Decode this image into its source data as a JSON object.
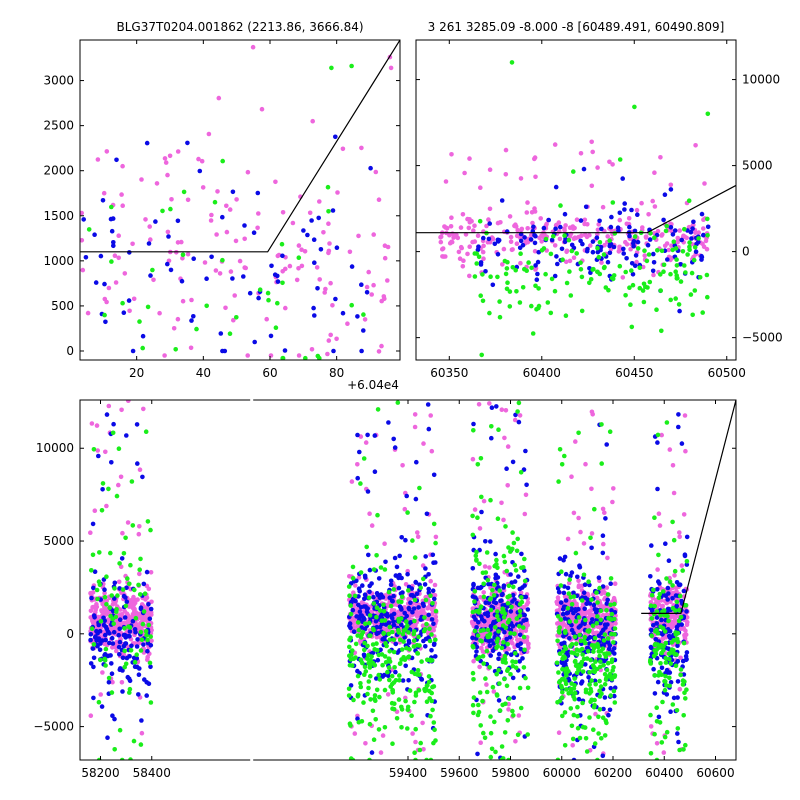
{
  "colors": {
    "pink": "#ee66dd",
    "blue": "#0a0ae6",
    "green": "#1aee1a",
    "line": "#000000"
  },
  "chart_data": [
    {
      "type": "scatter",
      "title": "BLG37T0204.001862 (2213.86, 3666.84)",
      "x_offset_label": "+6.04e4",
      "xlim": [
        3,
        99
      ],
      "ylim": [
        -100,
        3450
      ],
      "xticks": [
        20,
        40,
        60,
        80
      ],
      "xtick_labels": [
        "20",
        "40",
        "60",
        "80"
      ],
      "yticks": [
        0,
        500,
        1000,
        1500,
        2000,
        2500,
        3000
      ],
      "ytick_labels": [
        "0",
        "500",
        "1000",
        "1500",
        "2000",
        "2500",
        "3000"
      ],
      "yaxis_side": "left",
      "model_line": {
        "x": [
          3,
          59.3,
          99
        ],
        "y": [
          1100,
          1100,
          3450
        ]
      },
      "series": [
        {
          "color_key": "pink",
          "count": 150,
          "x_range": [
            3,
            97
          ],
          "y_range": [
            -50,
            3400
          ],
          "center": 1150,
          "spread": 650
        },
        {
          "color_key": "blue",
          "count": 80,
          "x_range": [
            3,
            93
          ],
          "y_range": [
            0,
            2500
          ],
          "center": 850,
          "spread": 550
        },
        {
          "color_key": "green",
          "count": 40,
          "x_range": [
            5,
            93
          ],
          "y_range": [
            -80,
            3400
          ],
          "center": 700,
          "spread": 700
        }
      ]
    },
    {
      "type": "scatter",
      "title": "3 261 3285.09 -8.000 -8 [60489.491, 60490.809]",
      "xlim": [
        60332,
        60505
      ],
      "ylim": [
        -6300,
        12300
      ],
      "xticks": [
        60350,
        60400,
        60450,
        60500
      ],
      "xtick_labels": [
        "60350",
        "60400",
        "60450",
        "60500"
      ],
      "yticks": [
        -5000,
        0,
        5000,
        10000
      ],
      "ytick_labels": [
        "−5000",
        "0",
        "5000",
        "10000"
      ],
      "yaxis_side": "right",
      "model_line": {
        "x": [
          60332,
          60457,
          60505
        ],
        "y": [
          1100,
          1100,
          3850
        ]
      },
      "series": [
        {
          "color_key": "pink",
          "count": 320,
          "x_range": [
            60345,
            60490
          ],
          "y_range": [
            -1500,
            6500
          ],
          "center": 800,
          "spread": 700
        },
        {
          "color_key": "blue",
          "count": 150,
          "x_range": [
            60365,
            60490
          ],
          "y_range": [
            -6300,
            6000
          ],
          "center": 300,
          "spread": 900
        },
        {
          "color_key": "green",
          "count": 160,
          "x_range": [
            60360,
            60490
          ],
          "y_range": [
            -6300,
            11500
          ],
          "center": -1200,
          "spread": 1300
        }
      ]
    },
    {
      "type": "scatter",
      "title": "",
      "xlim": [
        58120,
        60680
      ],
      "ylim": [
        -6800,
        12600
      ],
      "xticks": [
        58200,
        58400,
        59400,
        59600,
        59800,
        60000,
        60200,
        60400,
        60600
      ],
      "xtick_labels": [
        "58200",
        "58400",
        "59400",
        "59600",
        "59800",
        "60000",
        "60200",
        "60400",
        "60600"
      ],
      "yticks": [
        -5000,
        0,
        5000,
        10000
      ],
      "ytick_labels": [
        "−5000",
        "0",
        "5000",
        "10000"
      ],
      "yaxis_side": "left",
      "axis_break": [
        58410,
        59170
      ],
      "model_line": {
        "x": [
          60310,
          60465,
          60680
        ],
        "y": [
          1100,
          1100,
          12600
        ]
      },
      "clusters": [
        {
          "x_range": [
            58160,
            58400
          ],
          "counts": {
            "pink": 420,
            "blue": 160,
            "green": 90
          },
          "centers": {
            "pink": 600,
            "blue": -200,
            "green": 800
          },
          "spreads": {
            "pink": 800,
            "blue": 1400,
            "green": 3500
          }
        },
        {
          "x_range": [
            59170,
            59510
          ],
          "counts": {
            "pink": 480,
            "blue": 280,
            "green": 260
          },
          "centers": {
            "pink": 1000,
            "blue": 700,
            "green": -1500
          },
          "spreads": {
            "pink": 700,
            "blue": 1600,
            "green": 2400
          }
        },
        {
          "x_range": [
            59650,
            59870
          ],
          "counts": {
            "pink": 380,
            "blue": 200,
            "green": 180
          },
          "centers": {
            "pink": 600,
            "blue": 500,
            "green": 0
          },
          "spreads": {
            "pink": 900,
            "blue": 1700,
            "green": 3200
          }
        },
        {
          "x_range": [
            59980,
            60210
          ],
          "counts": {
            "pink": 380,
            "blue": 220,
            "green": 230
          },
          "centers": {
            "pink": 800,
            "blue": -200,
            "green": -1800
          },
          "spreads": {
            "pink": 800,
            "blue": 1800,
            "green": 1900
          }
        },
        {
          "x_range": [
            60345,
            60490
          ],
          "counts": {
            "pink": 250,
            "blue": 140,
            "green": 120
          },
          "centers": {
            "pink": 1000,
            "blue": 0,
            "green": -1000
          },
          "spreads": {
            "pink": 900,
            "blue": 1600,
            "green": 2500
          }
        }
      ]
    }
  ]
}
